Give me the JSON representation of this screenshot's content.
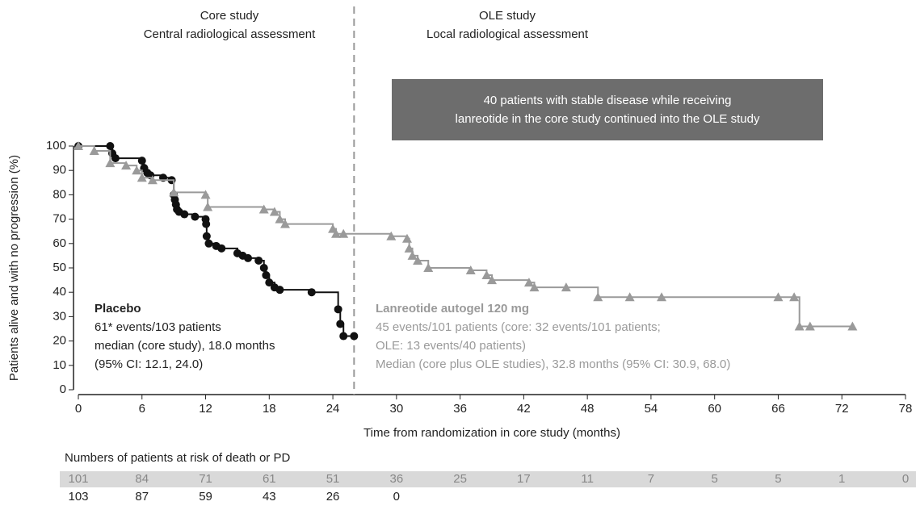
{
  "chart_data": {
    "type": "km",
    "header_left": [
      "Core study",
      "Central radiological assessment"
    ],
    "header_right": [
      "OLE study",
      "Local radiological assessment"
    ],
    "box_text": [
      "40 patients with stable disease while receiving",
      "lanreotide in the core study continued into the OLE study"
    ],
    "divider_x": 26,
    "xlabel": "Time from randomization in core study (months)",
    "ylabel": "Patients alive and with no progression (%)",
    "xlim": [
      0,
      78
    ],
    "xticks": [
      0,
      6,
      12,
      18,
      24,
      30,
      36,
      42,
      48,
      54,
      60,
      66,
      72,
      78
    ],
    "ylim": [
      0,
      100
    ],
    "yticks": [
      0,
      10,
      20,
      30,
      40,
      50,
      60,
      70,
      80,
      90,
      100
    ],
    "series": [
      {
        "name": "Placebo",
        "color": "#111111",
        "marker": "circle",
        "details": [
          "61* events/103 patients",
          "median (core study), 18.0 months",
          "(95% CI: 12.1, 24.0)"
        ],
        "x": [
          0,
          3,
          3.2,
          3.5,
          6,
          6.2,
          6.5,
          6.8,
          8,
          8.8,
          9,
          9.1,
          9.2,
          9.3,
          9.5,
          10,
          11,
          12,
          12.05,
          12.1,
          12.3,
          13,
          13.5,
          15,
          15.5,
          16,
          17,
          17.5,
          17.7,
          18,
          18.5,
          19,
          22,
          24.5,
          24.7,
          25,
          26
        ],
        "values": [
          100,
          100,
          97,
          95,
          94,
          91,
          89,
          88,
          87,
          86,
          80,
          78,
          76,
          74,
          73,
          72,
          71,
          70,
          68,
          63,
          60,
          59,
          58,
          56,
          55,
          54,
          53,
          50,
          47,
          44,
          42,
          41,
          40,
          33,
          27,
          22,
          22
        ]
      },
      {
        "name": "Lanreotide autogel 120 mg",
        "color": "#9a9a9a",
        "marker": "triangle",
        "details": [
          "45 events/101 patients (core: 32 events/101 patients;",
          "OLE: 13 events/40 patients)",
          "Median (core plus OLE studies), 32.8 months (95% CI: 30.9, 68.0)"
        ],
        "x": [
          0,
          1.5,
          3,
          4.5,
          5.5,
          6,
          7,
          9,
          12,
          12.2,
          17.5,
          18.5,
          19,
          19.5,
          24,
          24.3,
          25,
          29.5,
          31,
          31.2,
          31.5,
          32,
          33,
          37,
          38.5,
          39,
          42.5,
          43,
          46,
          49,
          52,
          55,
          66,
          67.5,
          68,
          69,
          73
        ],
        "values": [
          100,
          98,
          93,
          92,
          90,
          87,
          86,
          81,
          80,
          75,
          74,
          73,
          70,
          68,
          66,
          64,
          64,
          63,
          62,
          58,
          55,
          53,
          50,
          49,
          47,
          45,
          44,
          42,
          42,
          38,
          38,
          38,
          38,
          38,
          26,
          26,
          26
        ]
      }
    ],
    "risk_table": {
      "title": "Numbers of patients at risk of death or PD",
      "rows": [
        [
          101,
          84,
          71,
          61,
          51,
          36,
          25,
          17,
          11,
          7,
          5,
          5,
          1,
          0
        ],
        [
          103,
          87,
          59,
          43,
          26,
          0
        ]
      ]
    }
  }
}
